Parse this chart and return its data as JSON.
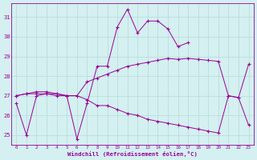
{
  "xlabel": "Windchill (Refroidissement éolien,°C)",
  "x": [
    0,
    1,
    2,
    3,
    4,
    5,
    6,
    7,
    8,
    9,
    10,
    11,
    12,
    13,
    14,
    15,
    16,
    17,
    18,
    19,
    20,
    21,
    22,
    23
  ],
  "line1": [
    26.6,
    25.0,
    27.0,
    27.1,
    27.1,
    27.0,
    24.8,
    26.6,
    28.5,
    28.5,
    30.5,
    31.4,
    30.2,
    30.8,
    30.8,
    30.4,
    29.5,
    29.7,
    null,
    null,
    null,
    null,
    null,
    null
  ],
  "line2": [
    27.0,
    27.1,
    27.2,
    27.2,
    27.1,
    27.0,
    27.0,
    27.7,
    27.9,
    28.1,
    28.3,
    28.5,
    28.6,
    28.7,
    28.8,
    28.9,
    28.85,
    28.9,
    28.85,
    28.8,
    28.75,
    27.0,
    26.9,
    28.6
  ],
  "line3": [
    27.0,
    27.1,
    27.1,
    27.1,
    27.0,
    27.0,
    27.0,
    26.8,
    26.5,
    26.5,
    26.3,
    26.1,
    26.0,
    25.8,
    25.7,
    25.6,
    25.5,
    25.4,
    25.3,
    25.2,
    25.1,
    27.0,
    26.9,
    25.5
  ],
  "line_color": "#990099",
  "bg_color": "#d4f0f0",
  "grid_color": "#b8d8d8",
  "ylim": [
    24.5,
    31.7
  ],
  "yticks": [
    25,
    26,
    27,
    28,
    29,
    30,
    31
  ],
  "xticks": [
    0,
    1,
    2,
    3,
    4,
    5,
    6,
    7,
    8,
    9,
    10,
    11,
    12,
    13,
    14,
    15,
    16,
    17,
    18,
    19,
    20,
    21,
    22,
    23
  ],
  "xlim": [
    -0.5,
    23.5
  ]
}
